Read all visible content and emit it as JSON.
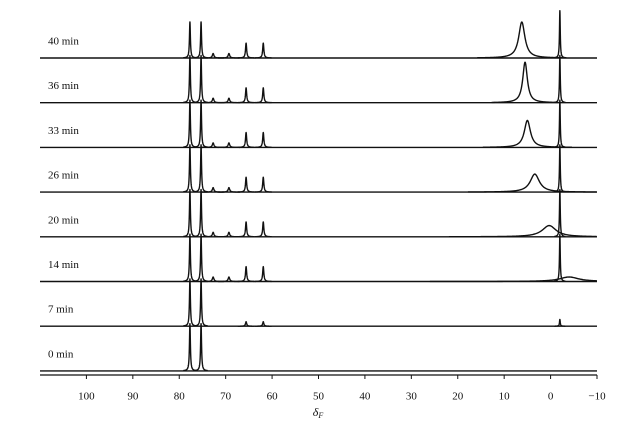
{
  "chart_data": {
    "type": "stacked_spectra",
    "x_label": "δ",
    "x_label_subscript": "F",
    "xlim": [
      110,
      -10
    ],
    "xticks": [
      100,
      90,
      80,
      70,
      60,
      50,
      40,
      30,
      20,
      10,
      0,
      {
        "value": -10,
        "label": "−10"
      }
    ],
    "color": "#111111",
    "series": [
      {
        "name": "40 min",
        "peaks": [
          {
            "x": 77.7,
            "height": 0.8,
            "width": 0.12
          },
          {
            "x": 75.3,
            "height": 0.8,
            "width": 0.12
          },
          {
            "x": 72.7,
            "height": 0.1,
            "width": 0.2
          },
          {
            "x": 69.3,
            "height": 0.1,
            "width": 0.2
          },
          {
            "x": 65.6,
            "height": 0.33,
            "width": 0.15
          },
          {
            "x": 61.9,
            "height": 0.33,
            "width": 0.15
          },
          {
            "x": 6.2,
            "height": 0.8,
            "width": 0.8
          },
          {
            "x": -2,
            "height": 1.05,
            "width": 0.1
          }
        ]
      },
      {
        "name": "36 min",
        "peaks": [
          {
            "x": 77.7,
            "height": 1.05,
            "width": 0.12
          },
          {
            "x": 75.3,
            "height": 1.05,
            "width": 0.12
          },
          {
            "x": 72.7,
            "height": 0.1,
            "width": 0.2
          },
          {
            "x": 69.3,
            "height": 0.1,
            "width": 0.2
          },
          {
            "x": 65.6,
            "height": 0.33,
            "width": 0.15
          },
          {
            "x": 61.9,
            "height": 0.33,
            "width": 0.15
          },
          {
            "x": 5.5,
            "height": 0.9,
            "width": 0.6
          },
          {
            "x": -2,
            "height": 1.05,
            "width": 0.1
          }
        ]
      },
      {
        "name": "33 min",
        "peaks": [
          {
            "x": 77.7,
            "height": 1.05,
            "width": 0.12
          },
          {
            "x": 75.3,
            "height": 1.05,
            "width": 0.12
          },
          {
            "x": 72.7,
            "height": 0.1,
            "width": 0.2
          },
          {
            "x": 69.3,
            "height": 0.1,
            "width": 0.2
          },
          {
            "x": 65.6,
            "height": 0.33,
            "width": 0.15
          },
          {
            "x": 61.9,
            "height": 0.33,
            "width": 0.15
          },
          {
            "x": 5,
            "height": 0.6,
            "width": 0.8
          },
          {
            "x": -2,
            "height": 1.05,
            "width": 0.1
          }
        ]
      },
      {
        "name": "26 min",
        "peaks": [
          {
            "x": 77.7,
            "height": 1.05,
            "width": 0.12
          },
          {
            "x": 75.3,
            "height": 1.05,
            "width": 0.12
          },
          {
            "x": 72.7,
            "height": 0.1,
            "width": 0.2
          },
          {
            "x": 69.3,
            "height": 0.1,
            "width": 0.2
          },
          {
            "x": 65.6,
            "height": 0.33,
            "width": 0.15
          },
          {
            "x": 61.9,
            "height": 0.33,
            "width": 0.15
          },
          {
            "x": 3.4,
            "height": 0.4,
            "width": 1.2
          },
          {
            "x": -2,
            "height": 1.05,
            "width": 0.1
          }
        ]
      },
      {
        "name": "20 min",
        "peaks": [
          {
            "x": 77.7,
            "height": 1.05,
            "width": 0.12
          },
          {
            "x": 75.3,
            "height": 1.05,
            "width": 0.12
          },
          {
            "x": 72.7,
            "height": 0.1,
            "width": 0.2
          },
          {
            "x": 69.3,
            "height": 0.1,
            "width": 0.2
          },
          {
            "x": 65.6,
            "height": 0.33,
            "width": 0.15
          },
          {
            "x": 61.9,
            "height": 0.33,
            "width": 0.15
          },
          {
            "x": 0.3,
            "height": 0.25,
            "width": 1.8
          },
          {
            "x": -2,
            "height": 1.05,
            "width": 0.1
          }
        ]
      },
      {
        "name": "14 min",
        "peaks": [
          {
            "x": 77.7,
            "height": 1.05,
            "width": 0.12
          },
          {
            "x": 75.3,
            "height": 1.05,
            "width": 0.12
          },
          {
            "x": 72.7,
            "height": 0.1,
            "width": 0.2
          },
          {
            "x": 69.3,
            "height": 0.1,
            "width": 0.2
          },
          {
            "x": 65.6,
            "height": 0.33,
            "width": 0.15
          },
          {
            "x": 61.9,
            "height": 0.33,
            "width": 0.15
          },
          {
            "x": -4,
            "height": 0.1,
            "width": 2.5
          },
          {
            "x": -2,
            "height": 1.05,
            "width": 0.1
          }
        ]
      },
      {
        "name": "7 min",
        "peaks": [
          {
            "x": 77.7,
            "height": 1.05,
            "width": 0.12
          },
          {
            "x": 75.3,
            "height": 1.05,
            "width": 0.12
          },
          {
            "x": 65.6,
            "height": 0.1,
            "width": 0.15
          },
          {
            "x": 61.9,
            "height": 0.1,
            "width": 0.15
          },
          {
            "x": -2,
            "height": 0.15,
            "width": 0.1
          }
        ]
      },
      {
        "name": "0 min",
        "peaks": [
          {
            "x": 77.7,
            "height": 1.05,
            "width": 0.12
          },
          {
            "x": 75.3,
            "height": 1.05,
            "width": 0.12
          }
        ]
      }
    ]
  }
}
